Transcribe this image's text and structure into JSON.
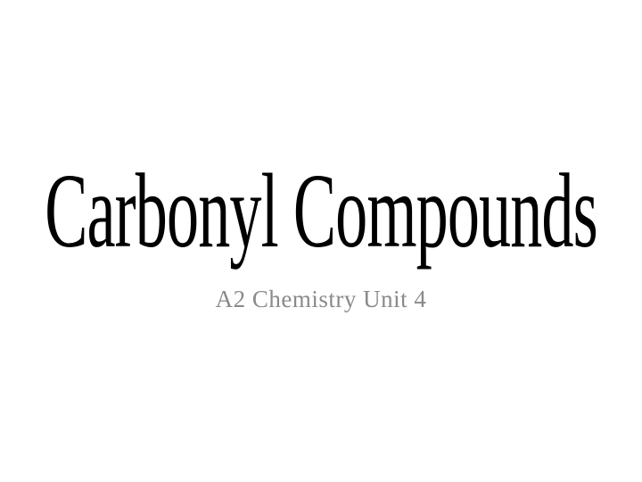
{
  "slide": {
    "title": "Carbonyl Compounds",
    "subtitle": "A2 Chemistry Unit 4",
    "title_color": "#000000",
    "subtitle_color": "#8a8a8a",
    "background_color": "#ffffff",
    "title_fontsize": 82,
    "subtitle_fontsize": 27,
    "font_family": "Georgia, 'Times New Roman', serif"
  }
}
